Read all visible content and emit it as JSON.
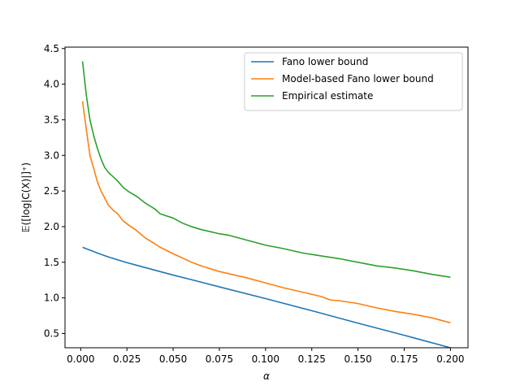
{
  "chart_data": {
    "type": "line",
    "xlabel": "α",
    "ylabel": "𝔼([log|C(X)|]⁺)",
    "xlim": [
      -0.0085,
      0.2095
    ],
    "ylim": [
      0.3,
      4.52
    ],
    "x_ticks": [
      0.0,
      0.025,
      0.05,
      0.075,
      0.1,
      0.125,
      0.15,
      0.175,
      0.2
    ],
    "x_tick_labels": [
      "0.000",
      "0.025",
      "0.050",
      "0.075",
      "0.100",
      "0.125",
      "0.150",
      "0.175",
      "0.200"
    ],
    "y_ticks": [
      0.5,
      1.0,
      1.5,
      2.0,
      2.5,
      3.0,
      3.5,
      4.0,
      4.5
    ],
    "y_tick_labels": [
      "0.5",
      "1.0",
      "1.5",
      "2.0",
      "2.5",
      "3.0",
      "3.5",
      "4.0",
      "4.5"
    ],
    "grid": false,
    "legend_position": "top-right",
    "series": [
      {
        "name": "Fano lower bound",
        "color": "#1f77b4",
        "x": [
          0.001,
          0.005,
          0.01,
          0.015,
          0.02,
          0.025,
          0.03,
          0.04,
          0.05,
          0.06,
          0.075,
          0.1,
          0.125,
          0.15,
          0.175,
          0.2
        ],
        "y": [
          1.71,
          1.67,
          1.62,
          1.575,
          1.535,
          1.495,
          1.46,
          1.39,
          1.32,
          1.255,
          1.155,
          0.99,
          0.82,
          0.645,
          0.475,
          0.3
        ]
      },
      {
        "name": "Model-based Fano lower bound",
        "color": "#ff7f0e",
        "x": [
          0.001,
          0.003,
          0.005,
          0.007,
          0.009,
          0.011,
          0.013,
          0.015,
          0.018,
          0.02,
          0.023,
          0.026,
          0.03,
          0.035,
          0.04,
          0.043,
          0.05,
          0.055,
          0.06,
          0.065,
          0.07,
          0.075,
          0.08,
          0.09,
          0.1,
          0.11,
          0.12,
          0.13,
          0.135,
          0.14,
          0.15,
          0.16,
          0.17,
          0.18,
          0.19,
          0.2
        ],
        "y": [
          3.76,
          3.37,
          3.0,
          2.82,
          2.63,
          2.5,
          2.4,
          2.3,
          2.22,
          2.18,
          2.08,
          2.02,
          1.95,
          1.84,
          1.76,
          1.71,
          1.62,
          1.56,
          1.5,
          1.45,
          1.41,
          1.37,
          1.34,
          1.28,
          1.21,
          1.14,
          1.08,
          1.02,
          0.97,
          0.96,
          0.92,
          0.86,
          0.81,
          0.77,
          0.72,
          0.65
        ]
      },
      {
        "name": "Empirical estimate",
        "color": "#2ca02c",
        "x": [
          0.001,
          0.003,
          0.005,
          0.007,
          0.009,
          0.011,
          0.013,
          0.015,
          0.018,
          0.02,
          0.023,
          0.026,
          0.03,
          0.035,
          0.04,
          0.043,
          0.05,
          0.055,
          0.06,
          0.065,
          0.07,
          0.075,
          0.08,
          0.09,
          0.1,
          0.11,
          0.12,
          0.13,
          0.14,
          0.15,
          0.16,
          0.17,
          0.18,
          0.19,
          0.2
        ],
        "y": [
          4.32,
          3.85,
          3.5,
          3.28,
          3.1,
          2.95,
          2.83,
          2.76,
          2.69,
          2.64,
          2.55,
          2.49,
          2.43,
          2.33,
          2.25,
          2.18,
          2.12,
          2.05,
          2.0,
          1.96,
          1.93,
          1.9,
          1.88,
          1.81,
          1.74,
          1.69,
          1.63,
          1.59,
          1.55,
          1.5,
          1.45,
          1.42,
          1.38,
          1.33,
          1.29
        ]
      }
    ]
  }
}
